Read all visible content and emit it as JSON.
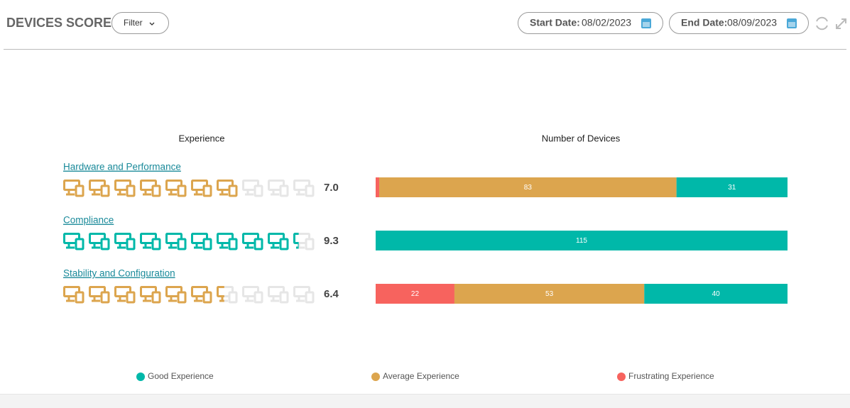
{
  "header": {
    "title": "DEVICES SCORE",
    "filter": "Filter",
    "start_label": "Start Date:",
    "start_date": "08/02/2023",
    "end_label": "End Date:",
    "end_date": "08/09/2023"
  },
  "chart_data": {
    "type": "devices-score",
    "columns": [
      "Experience",
      "Number of Devices"
    ],
    "score_lim": [
      0,
      10
    ],
    "rows": [
      {
        "name": "Hardware and Performance",
        "score": {
          "value": 7.0,
          "label": "7.0"
        },
        "color": "#dca54e"
      },
      {
        "name": "Compliance",
        "score": {
          "value": 9.3,
          "label": "9.3"
        },
        "color": "#00b8a9"
      },
      {
        "name": "Stability and Configuration",
        "score": {
          "value": 6.4,
          "label": "6.4"
        },
        "color": "#dca54e"
      }
    ],
    "series": [
      {
        "name": "Good Experience",
        "color": "#00b8a9",
        "values": [
          31,
          115,
          40
        ]
      },
      {
        "name": "Average Experience",
        "color": "#dca54e",
        "values": [
          83,
          0,
          53
        ]
      },
      {
        "name": "Frustrating Experience",
        "color": "#f7635e",
        "values": [
          1,
          0,
          22
        ]
      }
    ]
  }
}
